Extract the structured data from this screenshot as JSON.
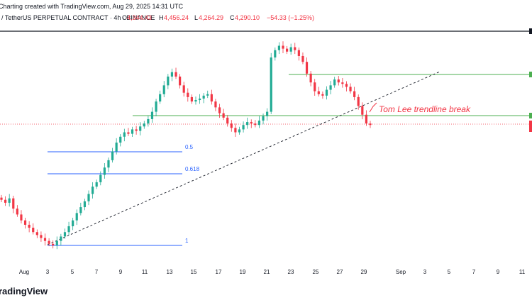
{
  "header": {
    "created_line": "Charting created with TradingView.com, Aug 29, 2025 14:31 UTC",
    "symbol": "/ TetherUS PERPETUAL CONTRACT · 4h · BINANCE",
    "ohlc": {
      "o_label": "O",
      "o_value": "4,344.43",
      "h_label": "H",
      "h_value": "4,456.24",
      "l_label": "L",
      "l_value": "4,264.29",
      "c_label": "C",
      "c_value": "4,290.10",
      "change": "−54.33 (−1.25%)"
    }
  },
  "annotations": {
    "trendline_label": "Tom Lee trendline break",
    "fib_levels": [
      {
        "label": "0.5"
      },
      {
        "label": "0.618"
      },
      {
        "label": "1"
      }
    ]
  },
  "x_axis": {
    "ticks": [
      "Aug",
      "3",
      "5",
      "7",
      "9",
      "11",
      "13",
      "15",
      "17",
      "19",
      "21",
      "23",
      "25",
      "27",
      "29",
      "Sep",
      "3",
      "5",
      "7",
      "9",
      "11"
    ]
  },
  "footer": {
    "logo_text": "radingView"
  },
  "colors": {
    "up": "#22ab94",
    "down": "#f23645",
    "fib": "#2962ff",
    "level": "#4caf50",
    "annotation": "#f23645",
    "text": "#131722",
    "muted": "#787b86"
  },
  "chart_data": {
    "type": "candlestick",
    "interval": "4h",
    "trend_break_label": "Tom Lee trendline break",
    "candles_close_path": [
      3780,
      3760,
      3790,
      3720,
      3680,
      3640,
      3610,
      3590,
      3560,
      3540,
      3520,
      3500,
      3480,
      3470,
      3500,
      3530,
      3560,
      3600,
      3640,
      3690,
      3730,
      3770,
      3820,
      3870,
      3900,
      3950,
      4000,
      4050,
      4110,
      4170,
      4210,
      4240,
      4230,
      4260,
      4250,
      4280,
      4300,
      4330,
      4380,
      4450,
      4500,
      4560,
      4620,
      4650,
      4620,
      4560,
      4510,
      4480,
      4450,
      4460,
      4470,
      4490,
      4500,
      4450,
      4410,
      4370,
      4340,
      4300,
      4270,
      4240,
      4260,
      4290,
      4310,
      4300,
      4290,
      4320,
      4350,
      4380,
      4750,
      4800,
      4830,
      4810,
      4790,
      4820,
      4800,
      4760,
      4720,
      4640,
      4580,
      4520,
      4500,
      4490,
      4530,
      4560,
      4600,
      4580,
      4570,
      4550,
      4520,
      4480,
      4420,
      4360,
      4300,
      4290
    ],
    "last_close": "4,290.10"
  }
}
